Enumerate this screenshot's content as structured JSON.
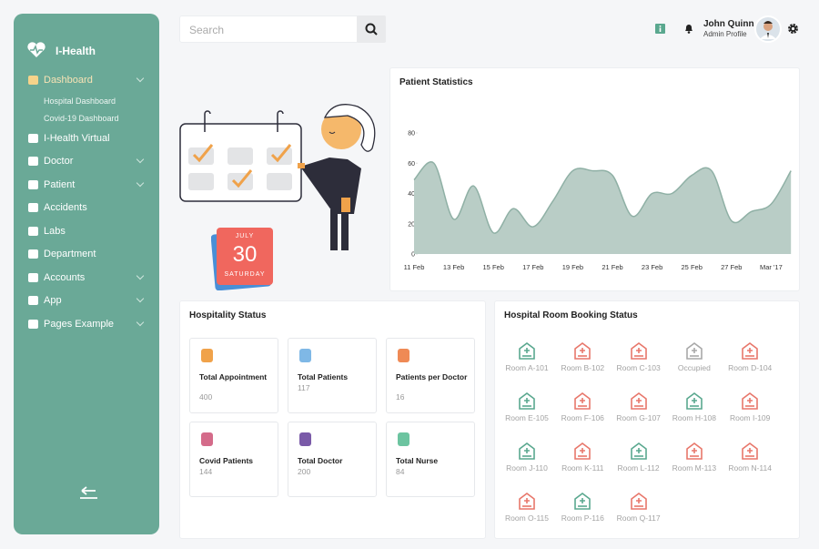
{
  "sidebar": {
    "brand": "I-Health",
    "menu": [
      "Dashboard",
      "Hospital Dashboard",
      "Covid-19 Dashboard",
      "I-Health Virtual",
      "Doctor",
      "Patient",
      "Accidents",
      "Labs",
      "Department",
      "Accounts",
      "App",
      "Pages Example"
    ]
  },
  "header": {
    "search_placeholder": "Search",
    "user_name": "John Quinn",
    "user_role": "Admin Profile"
  },
  "calendar": {
    "month": "JULY",
    "day": "30",
    "weekday": "SATURDAY"
  },
  "chart_data": {
    "type": "area",
    "title": "Patient Statistics",
    "categories": [
      "11 Feb",
      null,
      "13 Feb",
      null,
      "15 Feb",
      null,
      "17 Feb",
      null,
      "19 Feb",
      null,
      "21 Feb",
      null,
      "23 Feb",
      null,
      "25 Feb",
      null,
      "27 Feb",
      null,
      "Mar '17",
      null
    ],
    "values": [
      49,
      60,
      23,
      45,
      14,
      30,
      18,
      35,
      55,
      55,
      52,
      25,
      40,
      40,
      52,
      55,
      22,
      28,
      33,
      55
    ],
    "color": "#b9cdc6",
    "line_color": "#8fb0a5",
    "ylim": [
      0,
      80
    ],
    "yticks": [
      0,
      20,
      40,
      60,
      80
    ]
  },
  "hospitality": {
    "title": "Hospitality Status",
    "tiles": [
      {
        "label": "Total Appointment",
        "value": "400",
        "color": "#f0a24a"
      },
      {
        "label": "Total Patients",
        "value": "117",
        "color": "#7fb8e6"
      },
      {
        "label": "Patients per Doctor",
        "value": "16",
        "color": "#ef8a55"
      },
      {
        "label": "Covid Patients",
        "value": "144",
        "color": "#d46b8a"
      },
      {
        "label": "Total Doctor",
        "value": "200",
        "color": "#7a5aa8"
      },
      {
        "label": "Total Nurse",
        "value": "84",
        "color": "#6cc4a0"
      }
    ]
  },
  "rooms": {
    "title": "Hospital Room Booking Status",
    "items": [
      {
        "label": "Room A-101",
        "color": "#5aa88f"
      },
      {
        "label": "Room B-102",
        "color": "#e8776b"
      },
      {
        "label": "Room C-103",
        "color": "#e8776b"
      },
      {
        "label": "Occupied",
        "color": "#a8a8a8"
      },
      {
        "label": "Room D-104",
        "color": "#e8776b"
      },
      {
        "label": "Room E-105",
        "color": "#5aa88f"
      },
      {
        "label": "Room F-106",
        "color": "#e8776b"
      },
      {
        "label": "Room G-107",
        "color": "#e8776b"
      },
      {
        "label": "Room H-108",
        "color": "#5aa88f"
      },
      {
        "label": "Room I-109",
        "color": "#e8776b"
      },
      {
        "label": "Room J-110",
        "color": "#5aa88f"
      },
      {
        "label": "Room K-111",
        "color": "#e8776b"
      },
      {
        "label": "Room L-112",
        "color": "#5aa88f"
      },
      {
        "label": "Room M-113",
        "color": "#e8776b"
      },
      {
        "label": "Room N-114",
        "color": "#e8776b"
      },
      {
        "label": "Room O-115",
        "color": "#e8776b"
      },
      {
        "label": "Room P-116",
        "color": "#5aa88f"
      },
      {
        "label": "Room Q-117",
        "color": "#e8776b"
      }
    ]
  }
}
